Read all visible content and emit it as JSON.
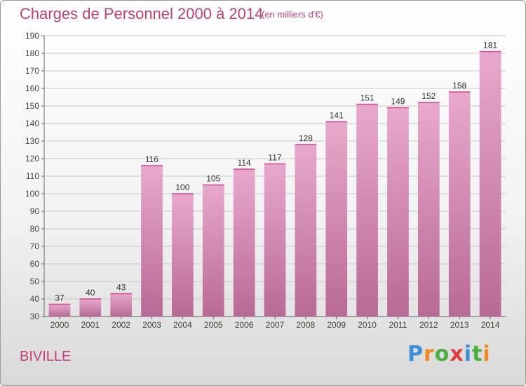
{
  "header": {
    "title": "Charges de Personnel 2000 à 2014",
    "subtitle": "(en milliers d'€)"
  },
  "commune": "BIVILLE",
  "logo": {
    "text": "Proxiti",
    "letter_colors": [
      "#3a8fd6",
      "#f08a1c",
      "#46b03c",
      "#e23b3b",
      "#3a8fd6",
      "#46b03c",
      "#f08a1c"
    ]
  },
  "chart_data": {
    "type": "bar",
    "categories": [
      "2000",
      "2001",
      "2002",
      "2003",
      "2004",
      "2005",
      "2006",
      "2007",
      "2008",
      "2009",
      "2010",
      "2011",
      "2012",
      "2013",
      "2014"
    ],
    "values": [
      37,
      40,
      43,
      116,
      100,
      105,
      114,
      117,
      128,
      141,
      151,
      149,
      152,
      158,
      181
    ],
    "ylim": [
      30,
      190
    ],
    "yticks": [
      30,
      40,
      50,
      60,
      70,
      80,
      90,
      100,
      110,
      120,
      130,
      140,
      150,
      160,
      170,
      180,
      190
    ],
    "grid": true,
    "bar_color_top": "#e8a8cc",
    "bar_color_bottom": "#b86a94"
  }
}
